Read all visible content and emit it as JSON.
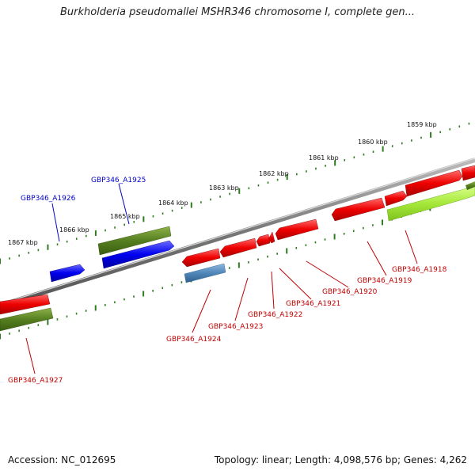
{
  "header": {
    "title": "Burkholderia pseudomallei MSHR346 chromosome I, complete gen..."
  },
  "footer": {
    "accession": "Accession: NC_012695",
    "topology": "Topology: linear; Length: 4,098,576 bp; Genes: 4,262"
  },
  "map": {
    "kbp_labels": [
      "1867 kbp",
      "1866 kbp",
      "1865 kbp",
      "1864 kbp",
      "1863 kbp",
      "1862 kbp",
      "1861 kbp",
      "1860 kbp",
      "1859 kbp"
    ],
    "genes": [
      {
        "id": "GBP346_A1926",
        "strand": "+",
        "color": "#0000c8"
      },
      {
        "id": "GBP346_A1925",
        "strand": "+",
        "color": "#0000c8"
      },
      {
        "id": "GBP346_A1927",
        "strand": "-",
        "color": "#c00000"
      },
      {
        "id": "GBP346_A1924",
        "strand": "-",
        "color": "#c00000"
      },
      {
        "id": "GBP346_A1923",
        "strand": "-",
        "color": "#c00000"
      },
      {
        "id": "GBP346_A1922",
        "strand": "-",
        "color": "#c00000"
      },
      {
        "id": "GBP346_A1921",
        "strand": "-",
        "color": "#c00000"
      },
      {
        "id": "GBP346_A1920",
        "strand": "-",
        "color": "#c00000"
      },
      {
        "id": "GBP346_A1919",
        "strand": "-",
        "color": "#c00000"
      },
      {
        "id": "GBP346_A1918",
        "strand": "-",
        "color": "#c00000"
      }
    ],
    "colors": {
      "cds_red": "#ee0000",
      "cds_blue": "#0000ee",
      "cds_olive": "#557f1f",
      "cds_lime": "#a6e83a",
      "cds_steel": "#4f86b8",
      "ticks": "#2e7d1e",
      "backbone": "#888888"
    }
  }
}
